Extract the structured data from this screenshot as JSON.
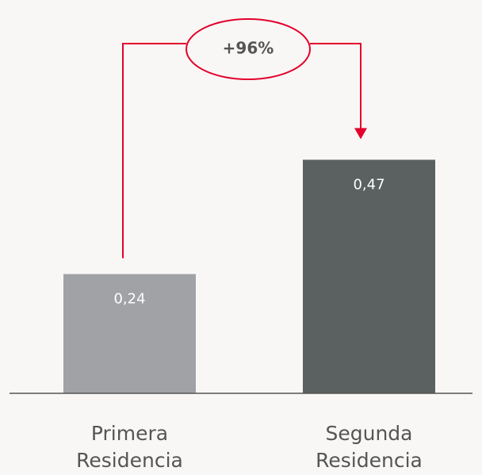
{
  "chart_data": {
    "type": "bar",
    "categories": [
      "Primera Residencia",
      "Segunda Residencia"
    ],
    "values": [
      0.24,
      0.47
    ],
    "value_labels": [
      "0,24",
      "0,47"
    ],
    "colors": [
      "#a0a2a5",
      "#5a6160"
    ],
    "ylim": [
      0,
      0.6
    ],
    "annotation": "+96%",
    "annotation_color": "#e4002b"
  }
}
